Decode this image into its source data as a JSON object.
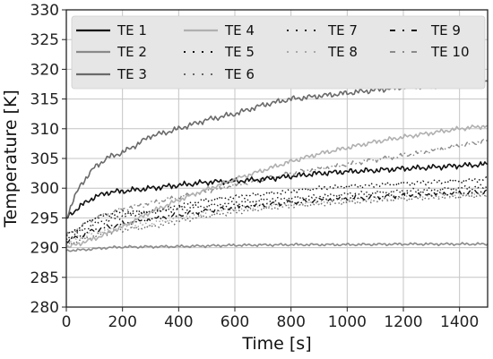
{
  "chart_data": {
    "type": "line",
    "xlabel": "Time [s]",
    "ylabel": "Temperature [K]",
    "xlim": [
      0,
      1500
    ],
    "ylim": [
      280,
      330
    ],
    "xticks": [
      0,
      200,
      400,
      600,
      800,
      1000,
      1200,
      1400
    ],
    "yticks": [
      280,
      285,
      290,
      295,
      300,
      305,
      310,
      315,
      320,
      325,
      330
    ],
    "grid": true,
    "legend_position": "top",
    "series": [
      {
        "name": "TE 1",
        "color": "#111111",
        "style": "solid",
        "points": [
          [
            0,
            295
          ],
          [
            50,
            297
          ],
          [
            100,
            298.5
          ],
          [
            150,
            299.3
          ],
          [
            200,
            299.5
          ],
          [
            300,
            300
          ],
          [
            400,
            300.5
          ],
          [
            500,
            301
          ],
          [
            600,
            301.2
          ],
          [
            700,
            301.5
          ],
          [
            800,
            302
          ],
          [
            900,
            302.5
          ],
          [
            1000,
            302.8
          ],
          [
            1100,
            303
          ],
          [
            1200,
            303.3
          ],
          [
            1300,
            303.5
          ],
          [
            1400,
            303.8
          ],
          [
            1500,
            304
          ]
        ]
      },
      {
        "name": "TE 2",
        "color": "#8a8a8a",
        "style": "solid",
        "points": [
          [
            0,
            289.5
          ],
          [
            50,
            289.6
          ],
          [
            100,
            289.8
          ],
          [
            150,
            290
          ],
          [
            200,
            290.1
          ],
          [
            400,
            290.2
          ],
          [
            600,
            290.4
          ],
          [
            800,
            290.5
          ],
          [
            1000,
            290.5
          ],
          [
            1200,
            290.6
          ],
          [
            1400,
            290.6
          ],
          [
            1500,
            290.6
          ]
        ]
      },
      {
        "name": "TE 3",
        "color": "#6a6a6a",
        "style": "solid",
        "points": [
          [
            0,
            295
          ],
          [
            25,
            298
          ],
          [
            50,
            300.5
          ],
          [
            100,
            303.5
          ],
          [
            150,
            305.2
          ],
          [
            200,
            306
          ],
          [
            250,
            307.3
          ],
          [
            300,
            308.8
          ],
          [
            350,
            309.3
          ],
          [
            400,
            310
          ],
          [
            500,
            311.5
          ],
          [
            600,
            312.5
          ],
          [
            700,
            314
          ],
          [
            800,
            315
          ],
          [
            900,
            315.5
          ],
          [
            1000,
            316
          ],
          [
            1100,
            316.5
          ],
          [
            1200,
            317
          ],
          [
            1300,
            317.2
          ],
          [
            1400,
            317.6
          ],
          [
            1500,
            318
          ]
        ]
      },
      {
        "name": "TE 4",
        "color": "#b0b0b0",
        "style": "solid",
        "points": [
          [
            0,
            290
          ],
          [
            100,
            291.5
          ],
          [
            200,
            293.5
          ],
          [
            300,
            296
          ],
          [
            400,
            298
          ],
          [
            500,
            299.8
          ],
          [
            600,
            301.5
          ],
          [
            700,
            303
          ],
          [
            800,
            304.5
          ],
          [
            900,
            305.8
          ],
          [
            1000,
            306.8
          ],
          [
            1100,
            307.8
          ],
          [
            1200,
            308.6
          ],
          [
            1300,
            309.3
          ],
          [
            1400,
            310
          ],
          [
            1500,
            310.5
          ]
        ]
      },
      {
        "name": "TE 5",
        "color": "#111111",
        "style": "dotted",
        "points": [
          [
            0,
            292
          ],
          [
            100,
            295
          ],
          [
            200,
            296
          ],
          [
            300,
            296
          ],
          [
            400,
            297
          ],
          [
            500,
            298
          ],
          [
            600,
            298.5
          ],
          [
            700,
            299
          ],
          [
            800,
            299.5
          ],
          [
            900,
            300
          ],
          [
            1000,
            300.3
          ],
          [
            1100,
            300.5
          ],
          [
            1200,
            300.8
          ],
          [
            1300,
            301
          ],
          [
            1400,
            301.2
          ],
          [
            1500,
            301.5
          ]
        ]
      },
      {
        "name": "TE 6",
        "color": "#666666",
        "style": "dotted",
        "points": [
          [
            0,
            290.5
          ],
          [
            100,
            292
          ],
          [
            200,
            293
          ],
          [
            300,
            293.5
          ],
          [
            400,
            294.5
          ],
          [
            500,
            295.3
          ],
          [
            600,
            296
          ],
          [
            700,
            296.5
          ],
          [
            800,
            297
          ],
          [
            900,
            297.3
          ],
          [
            1000,
            297.6
          ],
          [
            1100,
            297.9
          ],
          [
            1200,
            298.2
          ],
          [
            1300,
            298.4
          ],
          [
            1400,
            298.6
          ],
          [
            1500,
            298.8
          ]
        ]
      },
      {
        "name": "TE 7",
        "color": "#222222",
        "style": "dotted",
        "points": [
          [
            0,
            291.5
          ],
          [
            100,
            294
          ],
          [
            200,
            295.3
          ],
          [
            300,
            296
          ],
          [
            400,
            296.5
          ],
          [
            500,
            297
          ],
          [
            600,
            297.5
          ],
          [
            700,
            298
          ],
          [
            800,
            298.3
          ],
          [
            900,
            298.6
          ],
          [
            1000,
            299
          ],
          [
            1100,
            299.2
          ],
          [
            1200,
            299.5
          ],
          [
            1300,
            299.7
          ],
          [
            1400,
            300
          ],
          [
            1500,
            300.2
          ]
        ]
      },
      {
        "name": "TE 8",
        "color": "#a8a8a8",
        "style": "dotted",
        "points": [
          [
            0,
            291
          ],
          [
            100,
            292.5
          ],
          [
            200,
            293.5
          ],
          [
            300,
            294
          ],
          [
            400,
            295
          ],
          [
            500,
            296
          ],
          [
            600,
            296.5
          ],
          [
            700,
            297
          ],
          [
            800,
            297.3
          ],
          [
            900,
            297.6
          ],
          [
            1000,
            298
          ],
          [
            1100,
            298.3
          ],
          [
            1200,
            298.5
          ],
          [
            1300,
            298.7
          ],
          [
            1400,
            298.9
          ],
          [
            1500,
            299
          ]
        ]
      },
      {
        "name": "TE 9",
        "color": "#111111",
        "style": "dashdot",
        "points": [
          [
            0,
            291
          ],
          [
            100,
            293
          ],
          [
            200,
            294
          ],
          [
            300,
            294.8
          ],
          [
            400,
            295.5
          ],
          [
            500,
            296.2
          ],
          [
            600,
            296.8
          ],
          [
            700,
            297.2
          ],
          [
            800,
            297.6
          ],
          [
            900,
            298
          ],
          [
            1000,
            298.3
          ],
          [
            1100,
            298.5
          ],
          [
            1200,
            298.8
          ],
          [
            1300,
            299
          ],
          [
            1400,
            299.2
          ],
          [
            1500,
            299.4
          ]
        ]
      },
      {
        "name": "TE 10",
        "color": "#8a8a8a",
        "style": "dashdot",
        "points": [
          [
            0,
            292
          ],
          [
            100,
            295
          ],
          [
            200,
            296.5
          ],
          [
            300,
            297.5
          ],
          [
            400,
            298.5
          ],
          [
            500,
            299.5
          ],
          [
            600,
            300.5
          ],
          [
            700,
            301.5
          ],
          [
            800,
            302.5
          ],
          [
            900,
            303.3
          ],
          [
            1000,
            304
          ],
          [
            1100,
            304.8
          ],
          [
            1200,
            305.5
          ],
          [
            1300,
            306.3
          ],
          [
            1400,
            307.2
          ],
          [
            1500,
            308
          ]
        ]
      }
    ]
  }
}
